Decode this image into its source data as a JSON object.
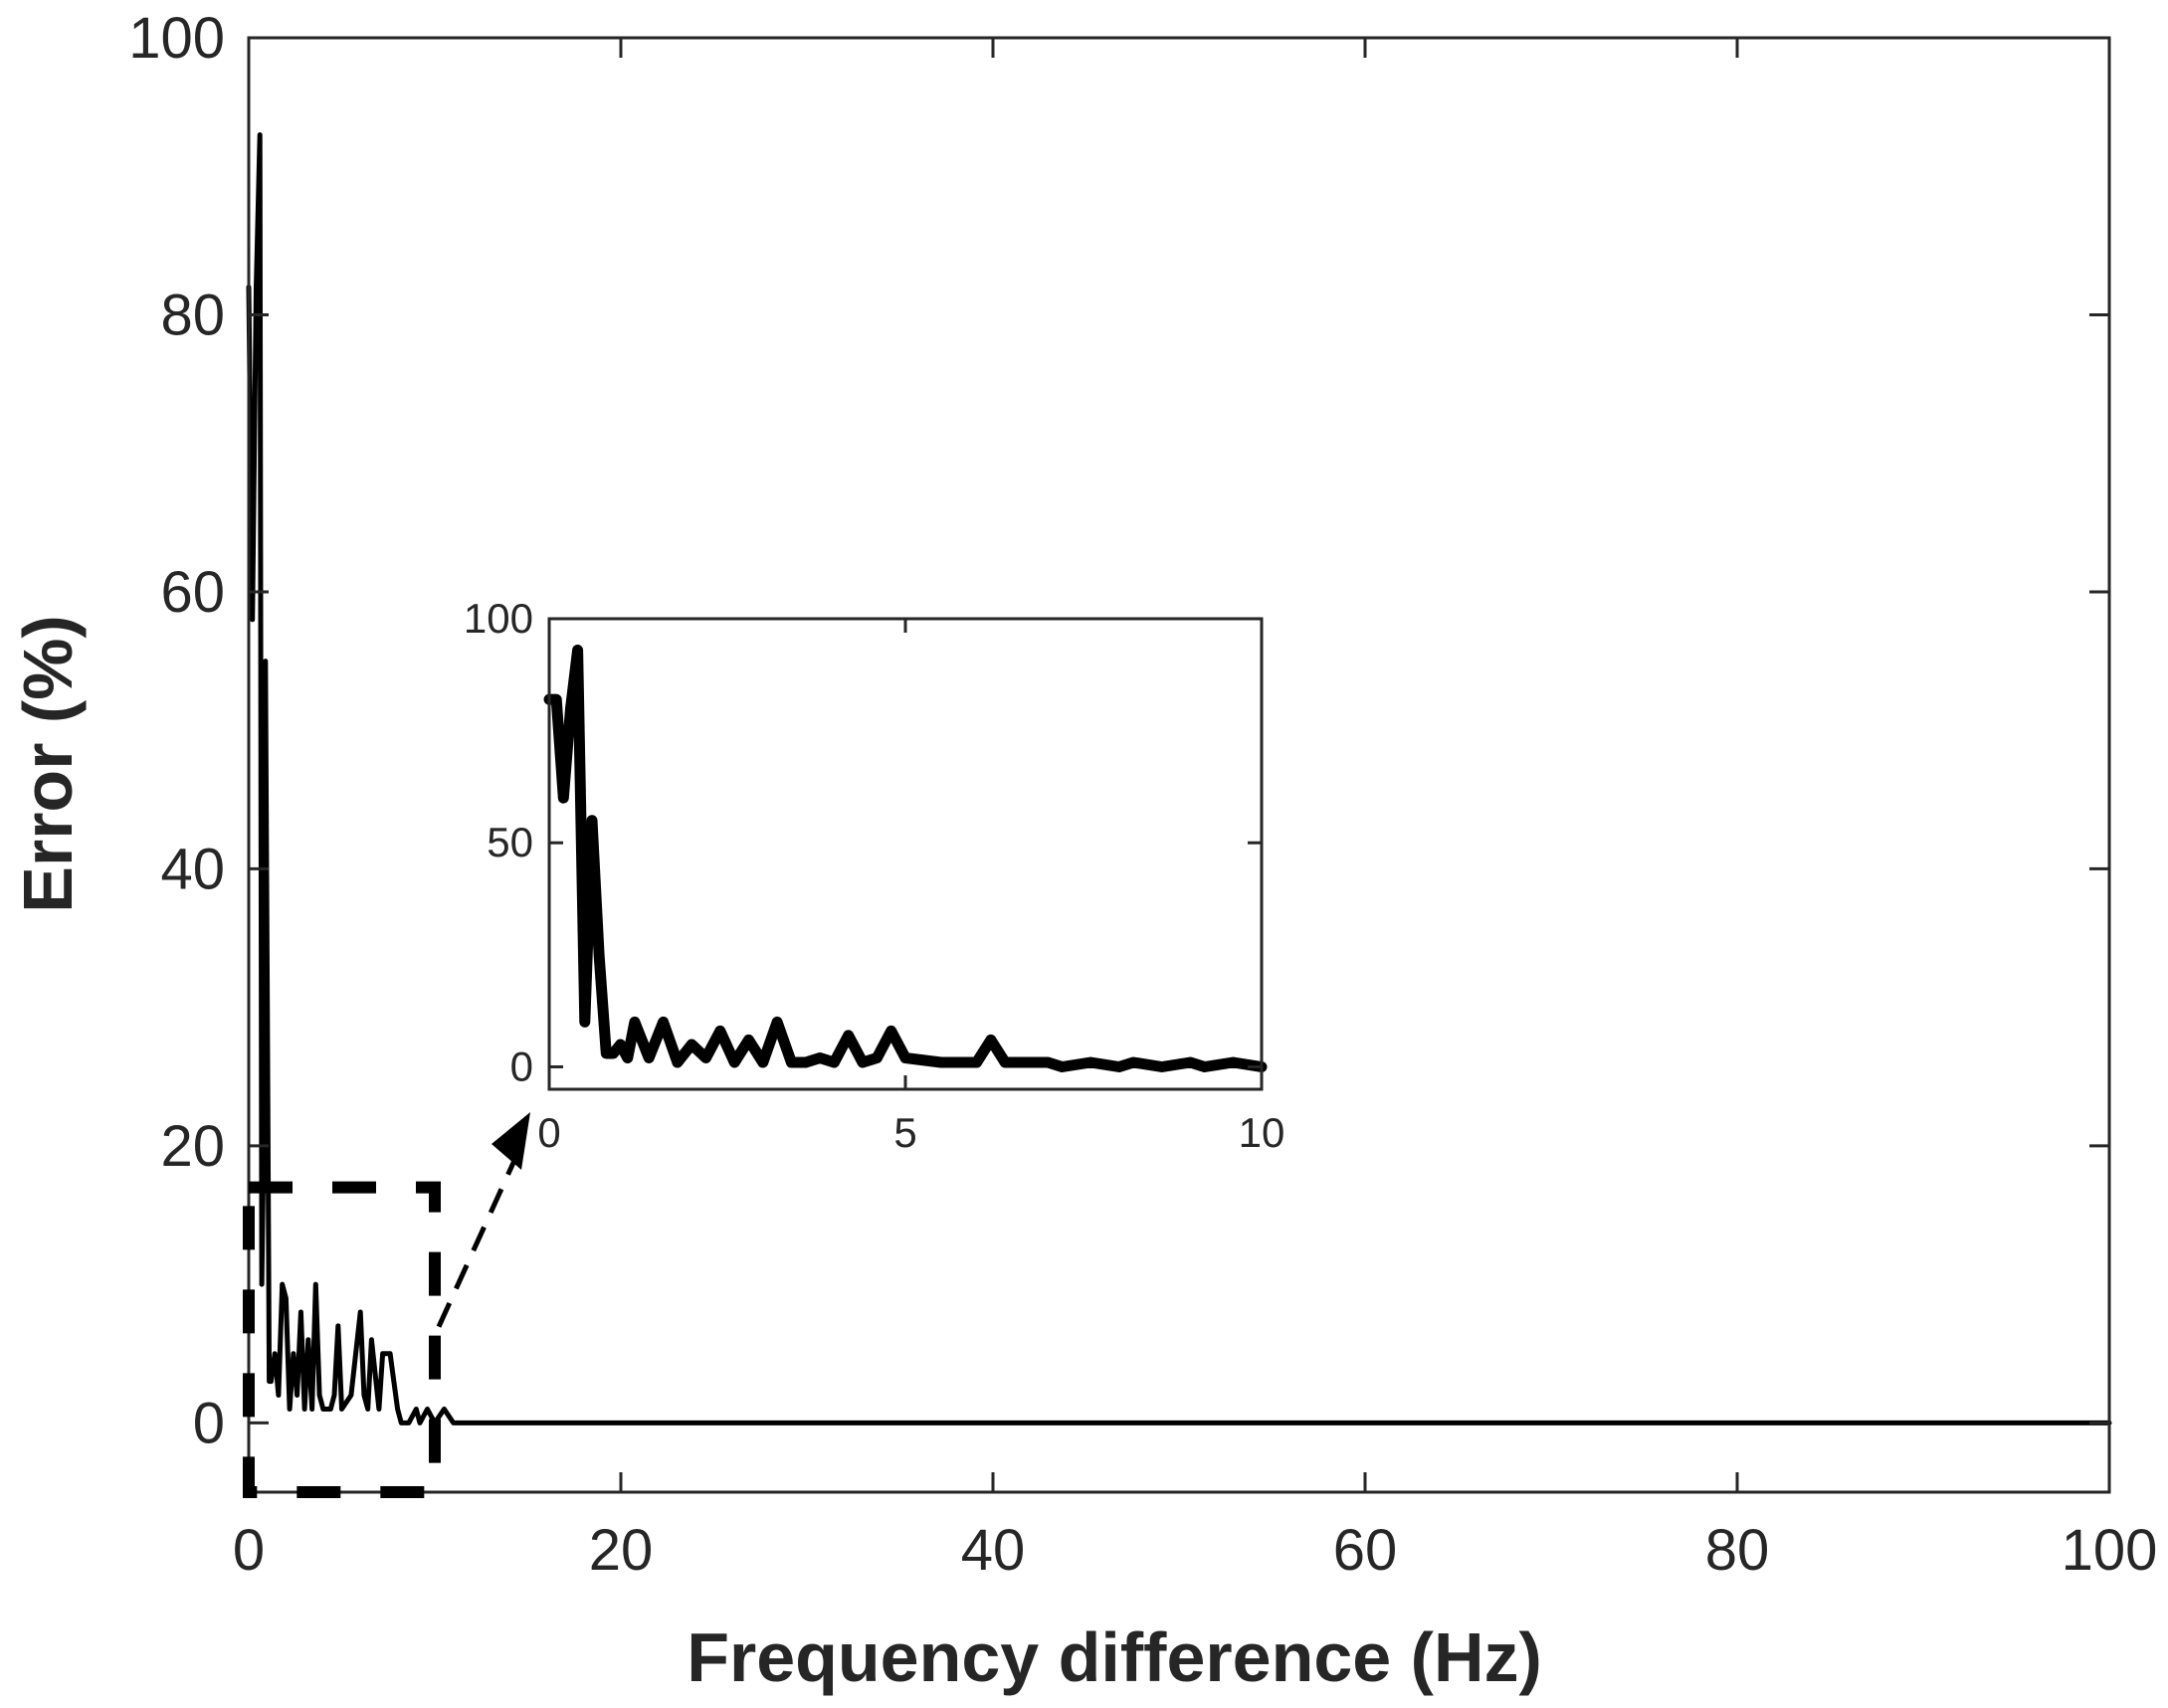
{
  "chart_data": [
    {
      "type": "line",
      "xlabel": "Frequency difference (Hz)",
      "ylabel": "Error (%)",
      "xlim": [
        0,
        100
      ],
      "ylim": [
        -5,
        100
      ],
      "xticks": [
        0,
        20,
        40,
        60,
        80,
        100
      ],
      "yticks": [
        0,
        20,
        40,
        60,
        80,
        100
      ],
      "grid": false,
      "color": "#000000",
      "series": [
        {
          "x": [
            0,
            0.2,
            0.4,
            0.6,
            0.7,
            0.8,
            0.9,
            1.0,
            1.1,
            1.2,
            1.4,
            1.6,
            1.8,
            2.0,
            2.2,
            2.4,
            2.6,
            2.8,
            3.0,
            3.2,
            3.4,
            3.6,
            3.8,
            4.0,
            4.2,
            4.4,
            4.6,
            4.8,
            5.0,
            5.5,
            6.0,
            6.2,
            6.4,
            6.6,
            7.0,
            7.2,
            7.6,
            8.0,
            8.2,
            8.6,
            9.0,
            9.2,
            9.6,
            10.0,
            10.5,
            11,
            100
          ],
          "y": [
            82,
            58,
            82,
            93,
            10,
            20,
            55,
            30,
            3,
            3,
            5,
            2,
            10,
            9,
            1,
            5,
            2,
            8,
            1,
            6,
            1,
            10,
            2,
            1,
            1,
            1,
            2,
            7,
            1,
            2,
            8,
            2,
            1,
            6,
            1,
            5,
            5,
            1,
            0,
            0,
            1,
            0,
            1,
            0,
            1,
            0,
            0
          ]
        }
      ],
      "zoom_box": {
        "x": [
          0,
          10
        ],
        "y": [
          -5,
          17
        ]
      }
    },
    {
      "type": "line",
      "inset": true,
      "xlim": [
        0,
        10
      ],
      "ylim": [
        -5,
        100
      ],
      "xticks": [
        0,
        5,
        10
      ],
      "yticks": [
        0,
        50,
        100
      ],
      "grid": false,
      "color": "#000000",
      "series": [
        {
          "x": [
            0,
            0.1,
            0.2,
            0.3,
            0.4,
            0.5,
            0.6,
            0.7,
            0.8,
            0.9,
            1.0,
            1.1,
            1.2,
            1.4,
            1.6,
            1.8,
            2.0,
            2.2,
            2.4,
            2.6,
            2.8,
            3.0,
            3.2,
            3.4,
            3.6,
            3.8,
            4.0,
            4.2,
            4.4,
            4.6,
            4.8,
            5.0,
            5.5,
            6.0,
            6.2,
            6.4,
            6.6,
            7.0,
            7.2,
            7.6,
            8.0,
            8.2,
            8.6,
            9.0,
            9.2,
            9.6,
            10.0
          ],
          "y": [
            82,
            82,
            60,
            80,
            93,
            10,
            55,
            25,
            3,
            3,
            5,
            2,
            10,
            2,
            10,
            1,
            5,
            2,
            8,
            1,
            6,
            1,
            10,
            1,
            1,
            2,
            1,
            7,
            1,
            2,
            8,
            2,
            1,
            1,
            6,
            1,
            1,
            1,
            0,
            1,
            0,
            1,
            0,
            1,
            0,
            1,
            0
          ]
        }
      ]
    }
  ]
}
